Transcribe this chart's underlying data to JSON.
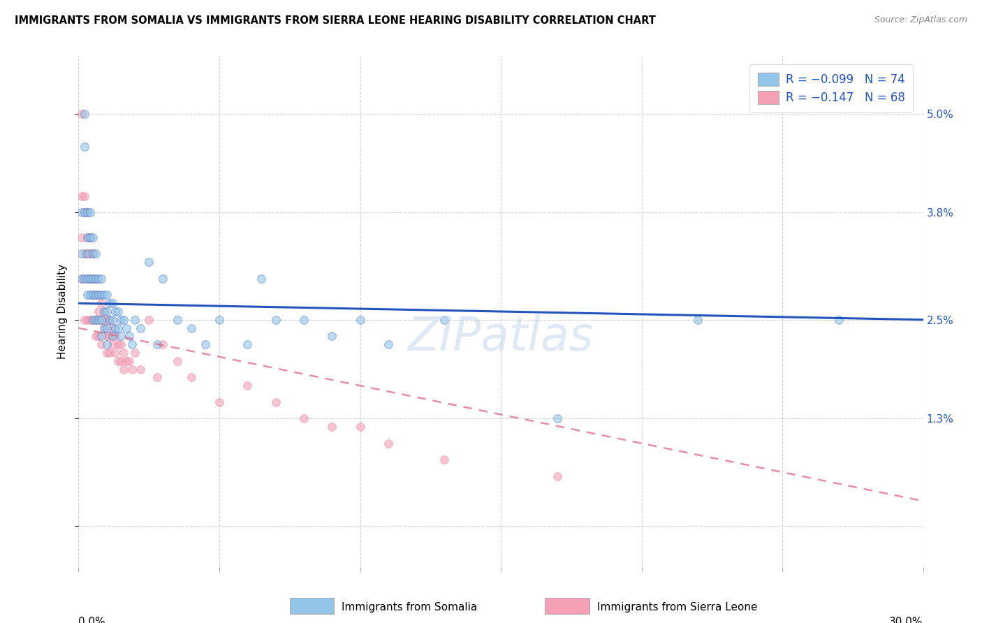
{
  "title": "IMMIGRANTS FROM SOMALIA VS IMMIGRANTS FROM SIERRA LEONE HEARING DISABILITY CORRELATION CHART",
  "source": "Source: ZipAtlas.com",
  "ylabel": "Hearing Disability",
  "yticks": [
    0.0,
    0.013,
    0.025,
    0.038,
    0.05
  ],
  "ytick_labels": [
    "",
    "1.3%",
    "2.5%",
    "3.8%",
    "5.0%"
  ],
  "xlim": [
    0.0,
    0.3
  ],
  "ylim": [
    -0.005,
    0.057
  ],
  "legend_somalia": "R = −0.099   N = 74",
  "legend_sierra": "R = −0.147   N = 68",
  "color_somalia": "#92C5E8",
  "color_sierra": "#F4A0B5",
  "trendline_somalia_color": "#2255BB",
  "trendline_sierra_color": "#DD6688",
  "scatter_alpha": 0.6,
  "scatter_size": 70,
  "somalia_x": [
    0.001,
    0.001,
    0.001,
    0.002,
    0.002,
    0.002,
    0.002,
    0.003,
    0.003,
    0.003,
    0.003,
    0.003,
    0.004,
    0.004,
    0.004,
    0.004,
    0.005,
    0.005,
    0.005,
    0.005,
    0.005,
    0.006,
    0.006,
    0.006,
    0.006,
    0.007,
    0.007,
    0.007,
    0.008,
    0.008,
    0.008,
    0.008,
    0.009,
    0.009,
    0.009,
    0.01,
    0.01,
    0.01,
    0.01,
    0.011,
    0.011,
    0.012,
    0.012,
    0.012,
    0.013,
    0.013,
    0.014,
    0.014,
    0.015,
    0.015,
    0.016,
    0.017,
    0.018,
    0.019,
    0.02,
    0.022,
    0.025,
    0.028,
    0.03,
    0.035,
    0.04,
    0.045,
    0.05,
    0.06,
    0.065,
    0.07,
    0.08,
    0.09,
    0.1,
    0.11,
    0.13,
    0.17,
    0.22,
    0.27
  ],
  "somalia_y": [
    0.038,
    0.033,
    0.03,
    0.05,
    0.046,
    0.038,
    0.03,
    0.038,
    0.035,
    0.033,
    0.03,
    0.028,
    0.038,
    0.035,
    0.03,
    0.028,
    0.035,
    0.033,
    0.03,
    0.028,
    0.025,
    0.033,
    0.03,
    0.028,
    0.025,
    0.03,
    0.028,
    0.025,
    0.03,
    0.028,
    0.025,
    0.023,
    0.028,
    0.026,
    0.024,
    0.028,
    0.026,
    0.024,
    0.022,
    0.027,
    0.025,
    0.027,
    0.025,
    0.023,
    0.026,
    0.024,
    0.026,
    0.024,
    0.025,
    0.023,
    0.025,
    0.024,
    0.023,
    0.022,
    0.025,
    0.024,
    0.032,
    0.022,
    0.03,
    0.025,
    0.024,
    0.022,
    0.025,
    0.022,
    0.03,
    0.025,
    0.025,
    0.023,
    0.025,
    0.022,
    0.025,
    0.013,
    0.025,
    0.025
  ],
  "sierra_x": [
    0.001,
    0.001,
    0.001,
    0.001,
    0.002,
    0.002,
    0.002,
    0.002,
    0.003,
    0.003,
    0.003,
    0.003,
    0.003,
    0.004,
    0.004,
    0.004,
    0.004,
    0.005,
    0.005,
    0.005,
    0.005,
    0.006,
    0.006,
    0.006,
    0.006,
    0.007,
    0.007,
    0.007,
    0.008,
    0.008,
    0.008,
    0.009,
    0.009,
    0.01,
    0.01,
    0.01,
    0.011,
    0.011,
    0.011,
    0.012,
    0.012,
    0.013,
    0.013,
    0.014,
    0.014,
    0.015,
    0.015,
    0.016,
    0.016,
    0.017,
    0.018,
    0.019,
    0.02,
    0.022,
    0.025,
    0.028,
    0.03,
    0.035,
    0.04,
    0.05,
    0.06,
    0.07,
    0.08,
    0.09,
    0.1,
    0.11,
    0.13,
    0.17
  ],
  "sierra_y": [
    0.05,
    0.04,
    0.035,
    0.03,
    0.04,
    0.038,
    0.033,
    0.025,
    0.038,
    0.035,
    0.033,
    0.03,
    0.025,
    0.035,
    0.033,
    0.03,
    0.025,
    0.033,
    0.03,
    0.028,
    0.025,
    0.03,
    0.028,
    0.025,
    0.023,
    0.028,
    0.026,
    0.023,
    0.027,
    0.025,
    0.022,
    0.026,
    0.024,
    0.025,
    0.023,
    0.021,
    0.025,
    0.023,
    0.021,
    0.024,
    0.022,
    0.023,
    0.021,
    0.022,
    0.02,
    0.022,
    0.02,
    0.021,
    0.019,
    0.02,
    0.02,
    0.019,
    0.021,
    0.019,
    0.025,
    0.018,
    0.022,
    0.02,
    0.018,
    0.015,
    0.017,
    0.015,
    0.013,
    0.012,
    0.012,
    0.01,
    0.008,
    0.006
  ],
  "somalia_trend_x": [
    0.0,
    0.3
  ],
  "somalia_trend_y": [
    0.027,
    0.025
  ],
  "sierra_trend_x": [
    0.0,
    0.3
  ],
  "sierra_trend_y": [
    0.024,
    0.003
  ],
  "legend_label_somalia": "Immigrants from Somalia",
  "legend_label_sierra": "Immigrants from Sierra Leone"
}
